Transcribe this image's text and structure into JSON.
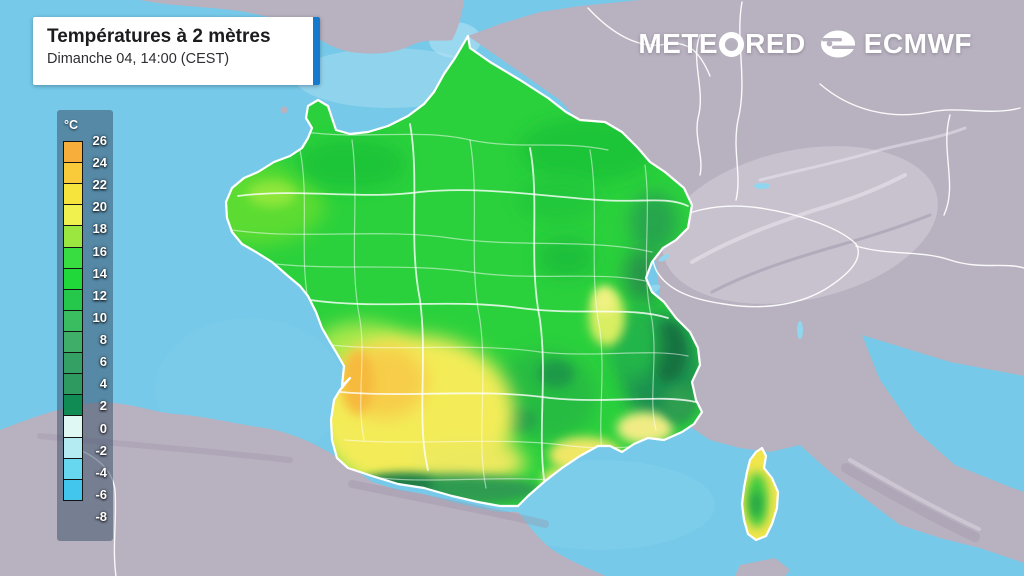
{
  "header": {
    "title": "Températures à 2 mètres",
    "subtitle": "Dimanche 04, 14:00 (CEST)"
  },
  "branding": {
    "meteored_prefix": "METE",
    "meteored_suffix": "RED",
    "ecmwf_label": "ECMWF"
  },
  "legend": {
    "unit": "°C",
    "labels": [
      "26",
      "24",
      "22",
      "20",
      "18",
      "16",
      "14",
      "12",
      "10",
      "8",
      "6",
      "4",
      "2",
      "0",
      "-2",
      "-4",
      "-6",
      "-8"
    ],
    "colors": [
      "#F7AE3B",
      "#F9CB3B",
      "#F6E43C",
      "#F0F04F",
      "#9BE73F",
      "#38DE41",
      "#21D83A",
      "#25C84A",
      "#39BD60",
      "#3FAE69",
      "#35A063",
      "#2F9A60",
      "#108B53",
      "#DFF8F4",
      "#B4EBF2",
      "#67D7F0",
      "#43C6EE"
    ]
  },
  "map": {
    "palette": {
      "sea": "#76C9E9",
      "sea_light": "#AADEF2",
      "land": "#B8B1BF",
      "land_light": "#D6D0DD",
      "lake": "#90D6EF",
      "border": "#FFFFFF",
      "france_base": "#2BD13C",
      "corsica_base": "#F2E54C"
    },
    "regions": {
      "brittany": "#5BDC31",
      "brittany2": "#8FE63B",
      "normandy_dark": "#1EC437",
      "ne_dark": "#1EC437",
      "champagne_dark": "#20C83A",
      "morvan_dark": "#1FBF3A",
      "vosges_dark": "#28A54E",
      "jura_dark": "#259549",
      "alps_dark": "#1F9150",
      "alps_core": "#14713F",
      "prealps": "#23B548",
      "lyon_pale": "#D9EE62",
      "lyon_bright": "#F0F283",
      "massif": "#27BC43",
      "massif_dark1": "#1F9A47",
      "massif_dark2": "#22A04A",
      "poitou_fringe": "#A9E84C",
      "sw_yellow": "#F3EC58",
      "sw_gold": "#F7CD49",
      "landes_hot": "#F6BA3E",
      "toulouse_yellow": "#EDE95E",
      "languedoc_yellow": "#F0E766",
      "roussillon_yellow": "#EDE968",
      "provence_pale": "#F0EC83",
      "nice_dark": "#2E9E4F",
      "pyrenees_dark": "#2F9B51",
      "pyrenees_core": "#1F7C44"
    },
    "corsica_regions": {
      "corsica_green": "#3FCC3F",
      "corsica_dark": "#249B47"
    }
  }
}
